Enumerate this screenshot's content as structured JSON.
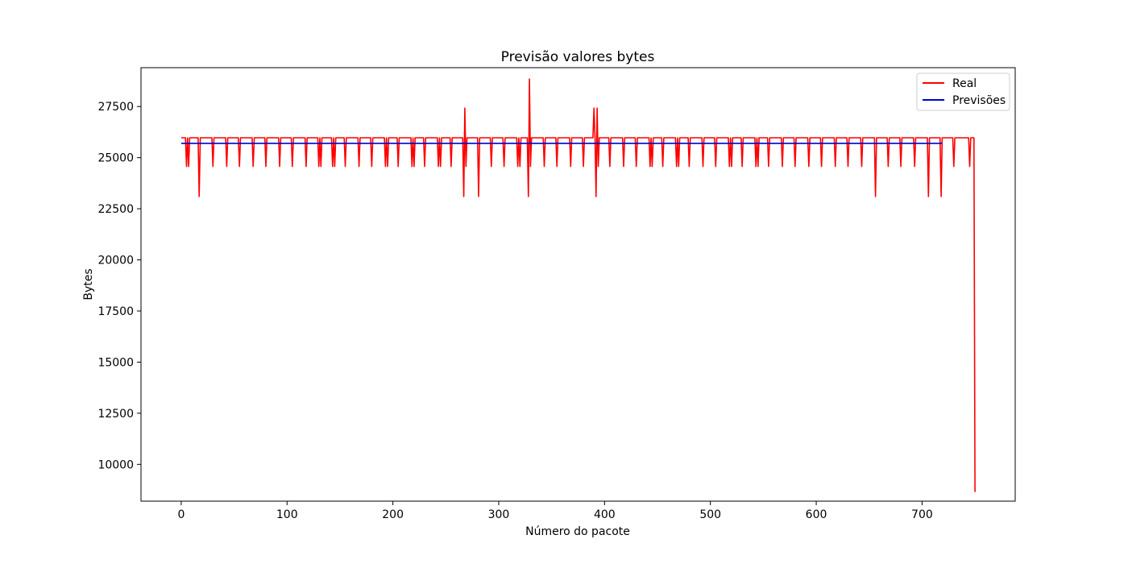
{
  "chart_data": {
    "type": "line",
    "title": "Previsão valores bytes",
    "xlabel": "Número do pacote",
    "ylabel": "Bytes",
    "xlim": [
      -38,
      788
    ],
    "ylim": [
      8200,
      29400
    ],
    "xticks": [
      0,
      100,
      200,
      300,
      400,
      500,
      600,
      700
    ],
    "yticks": [
      10000,
      12500,
      15000,
      17500,
      20000,
      22500,
      25000,
      27500
    ],
    "grid": false,
    "legend_position": "top-right",
    "series": [
      {
        "name": "Real",
        "color": "#ff0000",
        "base_value": 25970,
        "x_max": 750,
        "dips": [
          [
            5,
            24570
          ],
          [
            7,
            24570
          ],
          [
            17,
            23100
          ],
          [
            30,
            24570
          ],
          [
            43,
            24570
          ],
          [
            55,
            24570
          ],
          [
            68,
            24570
          ],
          [
            80,
            24570
          ],
          [
            93,
            24570
          ],
          [
            105,
            24570
          ],
          [
            118,
            24570
          ],
          [
            130,
            24570
          ],
          [
            132,
            24570
          ],
          [
            143,
            24570
          ],
          [
            145,
            24570
          ],
          [
            155,
            24570
          ],
          [
            168,
            24570
          ],
          [
            180,
            24570
          ],
          [
            193,
            24570
          ],
          [
            195,
            24570
          ],
          [
            205,
            24570
          ],
          [
            218,
            24570
          ],
          [
            220,
            24570
          ],
          [
            230,
            24570
          ],
          [
            243,
            24570
          ],
          [
            245,
            24570
          ],
          [
            255,
            24570
          ],
          [
            267,
            23100
          ],
          [
            269,
            24570
          ],
          [
            281,
            23100
          ],
          [
            293,
            24570
          ],
          [
            305,
            24570
          ],
          [
            318,
            24570
          ],
          [
            320,
            24570
          ],
          [
            328,
            23100
          ],
          [
            330,
            24570
          ],
          [
            343,
            24570
          ],
          [
            355,
            24570
          ],
          [
            368,
            24570
          ],
          [
            380,
            24570
          ],
          [
            392,
            23100
          ],
          [
            394,
            24570
          ],
          [
            405,
            24570
          ],
          [
            418,
            24570
          ],
          [
            430,
            24570
          ],
          [
            443,
            24570
          ],
          [
            445,
            24570
          ],
          [
            455,
            24570
          ],
          [
            468,
            24570
          ],
          [
            470,
            24570
          ],
          [
            480,
            24570
          ],
          [
            493,
            24570
          ],
          [
            505,
            24570
          ],
          [
            518,
            24570
          ],
          [
            520,
            24570
          ],
          [
            530,
            24570
          ],
          [
            543,
            24570
          ],
          [
            545,
            24570
          ],
          [
            555,
            24570
          ],
          [
            568,
            24570
          ],
          [
            580,
            24570
          ],
          [
            593,
            24570
          ],
          [
            605,
            24570
          ],
          [
            618,
            24570
          ],
          [
            630,
            24570
          ],
          [
            643,
            24570
          ],
          [
            656,
            23100
          ],
          [
            668,
            24570
          ],
          [
            680,
            24570
          ],
          [
            693,
            24570
          ],
          [
            706,
            23100
          ],
          [
            718,
            23100
          ],
          [
            730,
            24570
          ],
          [
            745,
            24570
          ]
        ],
        "spikes": [
          [
            268,
            27420
          ],
          [
            329,
            28850
          ],
          [
            390,
            27420
          ],
          [
            393,
            27420
          ]
        ],
        "end_value": 8650
      },
      {
        "name": "Previsões",
        "color": "#0000cc",
        "base_value": 25700,
        "x_max": 719
      }
    ]
  }
}
